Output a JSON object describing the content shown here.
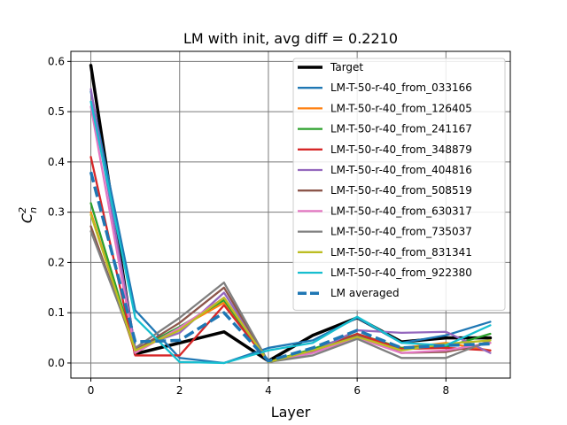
{
  "chart_data": {
    "type": "line",
    "title": "LM with init, avg diff = 0.2210",
    "xlabel": "Layer",
    "ylabel": "C",
    "ylabel_sup": "2",
    "ylabel_sub": "n",
    "xlim": [
      -0.45,
      9.45
    ],
    "ylim": [
      -0.03,
      0.62
    ],
    "xticks": [
      0,
      2,
      4,
      6,
      8
    ],
    "yticks": [
      0.0,
      0.1,
      0.2,
      0.3,
      0.4,
      0.5,
      0.6
    ],
    "ytick_labels": [
      "0.0",
      "0.1",
      "0.2",
      "0.3",
      "0.4",
      "0.5",
      "0.6"
    ],
    "grid": true,
    "legend_position": "upper-right",
    "x": [
      0,
      1,
      2,
      3,
      4,
      5,
      6,
      7,
      8,
      9
    ],
    "series": [
      {
        "name": "Target",
        "color": "#000000",
        "style": "solid",
        "width": 3.5,
        "values": [
          0.592,
          0.018,
          0.04,
          0.062,
          0.004,
          0.055,
          0.09,
          0.042,
          0.05,
          0.05
        ]
      },
      {
        "name": "LM-T-50-r-40_from_033166",
        "color": "#1f77b4",
        "style": "solid",
        "width": 2.3,
        "values": [
          0.54,
          0.105,
          0.01,
          0.0,
          0.03,
          0.045,
          0.09,
          0.04,
          0.055,
          0.082
        ]
      },
      {
        "name": "LM-T-50-r-40_from_126405",
        "color": "#ff7f0e",
        "style": "solid",
        "width": 2.3,
        "values": [
          0.3,
          0.02,
          0.07,
          0.12,
          0.002,
          0.025,
          0.055,
          0.03,
          0.04,
          0.025
        ]
      },
      {
        "name": "LM-T-50-r-40_from_241167",
        "color": "#2ca02c",
        "style": "solid",
        "width": 2.3,
        "values": [
          0.318,
          0.025,
          0.072,
          0.125,
          0.002,
          0.028,
          0.058,
          0.03,
          0.032,
          0.058
        ]
      },
      {
        "name": "LM-T-50-r-40_from_348879",
        "color": "#d62728",
        "style": "solid",
        "width": 2.3,
        "values": [
          0.41,
          0.015,
          0.015,
          0.115,
          0.002,
          0.022,
          0.058,
          0.028,
          0.03,
          0.025
        ]
      },
      {
        "name": "LM-T-50-r-40_from_404816",
        "color": "#9467bd",
        "style": "solid",
        "width": 2.3,
        "values": [
          0.545,
          0.03,
          0.06,
          0.14,
          0.002,
          0.022,
          0.065,
          0.06,
          0.062,
          0.02
        ]
      },
      {
        "name": "LM-T-50-r-40_from_508519",
        "color": "#8c564b",
        "style": "solid",
        "width": 2.3,
        "values": [
          0.272,
          0.025,
          0.08,
          0.15,
          0.002,
          0.022,
          0.055,
          0.02,
          0.022,
          0.04
        ]
      },
      {
        "name": "LM-T-50-r-40_from_630317",
        "color": "#e377c2",
        "style": "solid",
        "width": 2.3,
        "values": [
          0.51,
          0.02,
          0.07,
          0.13,
          0.002,
          0.02,
          0.05,
          0.02,
          0.025,
          0.04
        ]
      },
      {
        "name": "LM-T-50-r-40_from_735037",
        "color": "#7f7f7f",
        "style": "solid",
        "width": 2.3,
        "values": [
          0.262,
          0.03,
          0.09,
          0.16,
          0.002,
          0.015,
          0.048,
          0.01,
          0.01,
          0.045
        ]
      },
      {
        "name": "LM-T-50-r-40_from_831341",
        "color": "#bcbd22",
        "style": "solid",
        "width": 2.3,
        "values": [
          0.295,
          0.025,
          0.065,
          0.13,
          0.002,
          0.025,
          0.052,
          0.025,
          0.038,
          0.045
        ]
      },
      {
        "name": "LM-T-50-r-40_from_922380",
        "color": "#17becf",
        "style": "solid",
        "width": 2.3,
        "values": [
          0.52,
          0.09,
          0.002,
          0.0,
          0.025,
          0.04,
          0.092,
          0.04,
          0.035,
          0.075
        ]
      },
      {
        "name": "LM averaged",
        "color": "#1f77b4",
        "style": "dashed",
        "width": 3.5,
        "values": [
          0.38,
          0.042,
          0.045,
          0.1,
          0.004,
          0.03,
          0.065,
          0.03,
          0.035,
          0.038
        ]
      }
    ]
  }
}
